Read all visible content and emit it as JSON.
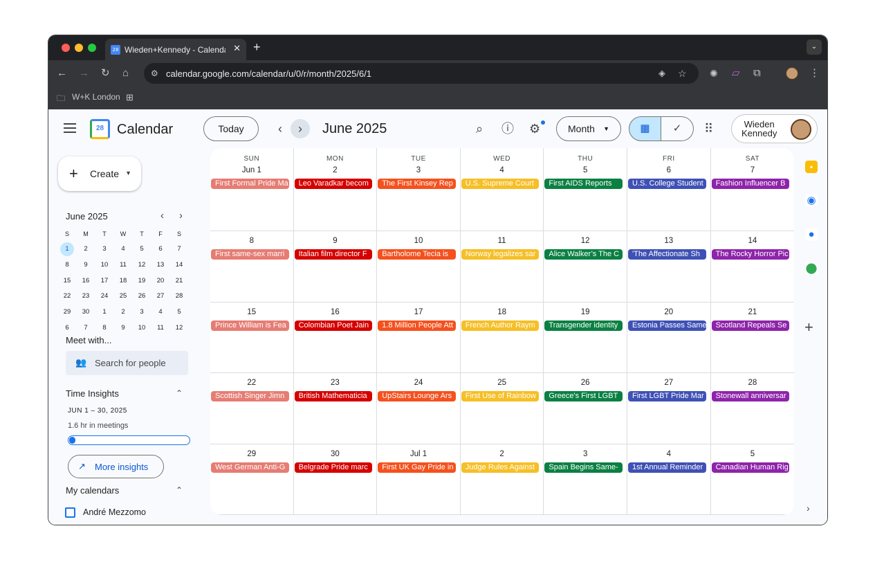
{
  "browser": {
    "tab_title": "Wieden+Kennedy - Calendar",
    "tab_favicon": "28",
    "url": "calendar.google.com/calendar/u/0/r/month/2025/6/1",
    "bookmark_folder": "W+K London"
  },
  "header": {
    "app_name": "Calendar",
    "logo_day": "28",
    "today_label": "Today",
    "month_title": "June 2025",
    "view_label": "Month",
    "account_line1": "Wieden",
    "account_line2": "Kennedy"
  },
  "sidebar": {
    "create_label": "Create",
    "mini_title": "June 2025",
    "mini_dows": [
      "S",
      "M",
      "T",
      "W",
      "T",
      "F",
      "S"
    ],
    "mini_weeks": [
      [
        "1",
        "2",
        "3",
        "4",
        "5",
        "6",
        "7"
      ],
      [
        "8",
        "9",
        "10",
        "11",
        "12",
        "13",
        "14"
      ],
      [
        "15",
        "16",
        "17",
        "18",
        "19",
        "20",
        "21"
      ],
      [
        "22",
        "23",
        "24",
        "25",
        "26",
        "27",
        "28"
      ],
      [
        "29",
        "30",
        "1",
        "2",
        "3",
        "4",
        "5"
      ],
      [
        "6",
        "7",
        "8",
        "9",
        "10",
        "11",
        "12"
      ]
    ],
    "meet_with": "Meet with...",
    "search_people": "Search for people",
    "time_insights": "Time Insights",
    "insights_range": "JUN 1 – 30, 2025",
    "insights_meetings": "1.6 hr in meetings",
    "insights_fraction": 0.05,
    "more_insights": "More insights",
    "my_calendars": "My calendars",
    "calendar_item": "André Mezzomo"
  },
  "grid": {
    "dows": [
      "SUN",
      "MON",
      "TUE",
      "WED",
      "THU",
      "FRI",
      "SAT"
    ],
    "day_colors": [
      "#e67c73",
      "#d50000",
      "#f4511e",
      "#f6bf26",
      "#0b8043",
      "#3f51b5",
      "#8e24aa"
    ],
    "weeks": [
      {
        "days": [
          "Jun 1",
          "2",
          "3",
          "4",
          "5",
          "6",
          "7"
        ],
        "events": [
          "First Formal Pride Ma",
          "Leo Varadkar becom",
          "The First Kinsey Rep",
          "U.S. Supreme Court",
          "First AIDS Reports",
          "U.S. College Student",
          "Fashion Influencer B"
        ]
      },
      {
        "days": [
          "8",
          "9",
          "10",
          "11",
          "12",
          "13",
          "14"
        ],
        "events": [
          "First same-sex marri",
          "Italian film director F",
          "Bartholome Tecia is",
          "Norway legalizes sar",
          "Alice Walker’s The C",
          "'The Affectionate Sh",
          "The Rocky Horror Pic"
        ]
      },
      {
        "days": [
          "15",
          "16",
          "17",
          "18",
          "19",
          "20",
          "21"
        ],
        "events": [
          "Prince William is Fea",
          "Colombian Poet Jain",
          "1.8 Million People Att",
          "French Author Raym",
          "Transgender identity",
          "Estonia Passes Same",
          "Scotland Repeals Se"
        ]
      },
      {
        "days": [
          "22",
          "23",
          "24",
          "25",
          "26",
          "27",
          "28"
        ],
        "events": [
          "Scottish Singer Jimn",
          "British Mathematicia",
          "UpStairs Lounge Ars",
          "First Use of Rainbow",
          "Greece's First LGBT",
          "First LGBT Pride Mar",
          "Stonewall anniversar"
        ]
      },
      {
        "days": [
          "29",
          "30",
          "Jul 1",
          "2",
          "3",
          "4",
          "5"
        ],
        "events": [
          "West German Anti-G",
          "Belgrade Pride marc",
          "First UK Gay Pride in",
          "Judge Rules Against",
          "Spain Begins Same-",
          "1st Annual Reminder",
          "Canadian Human Rig"
        ]
      }
    ]
  }
}
